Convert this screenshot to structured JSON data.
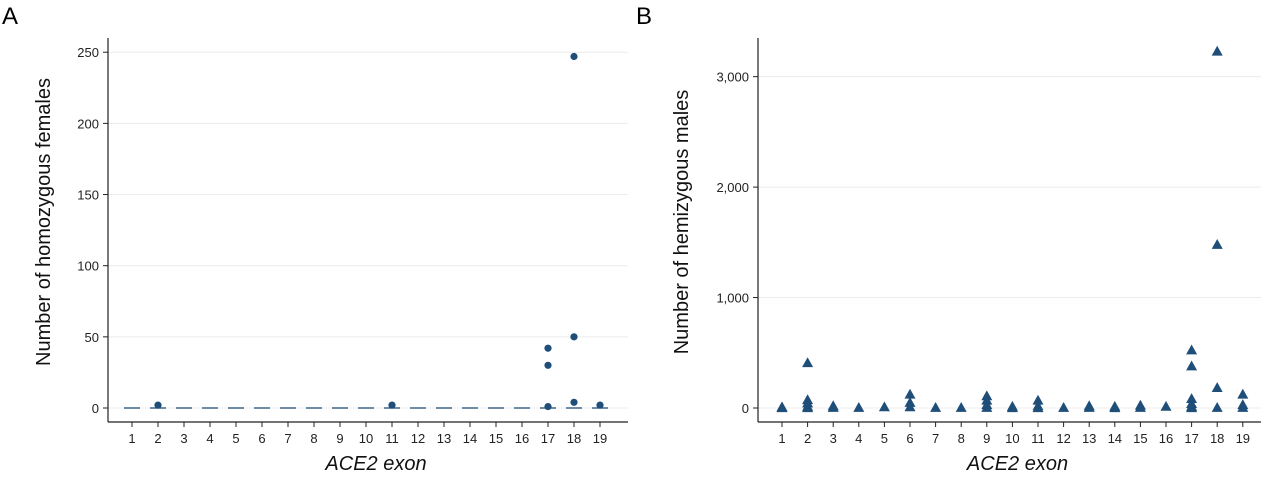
{
  "chart_data": [
    {
      "type": "scatter",
      "panel_label": "A",
      "xlabel": "ACE2 exon",
      "ylabel": "Number of homozygous females",
      "x_ticks": [
        "1",
        "2",
        "3",
        "4",
        "5",
        "6",
        "7",
        "8",
        "9",
        "10",
        "11",
        "12",
        "13",
        "14",
        "15",
        "16",
        "17",
        "18",
        "19"
      ],
      "ylim": [
        0,
        260
      ],
      "y_ticks": [
        0,
        50,
        100,
        150,
        200,
        250
      ],
      "y_tick_labels": [
        "0",
        "50",
        "100",
        "150",
        "200",
        "250"
      ],
      "grid": true,
      "marker": "circle",
      "color": "#1f4e79",
      "points": [
        {
          "x": 2,
          "y": 2
        },
        {
          "x": 11,
          "y": 2
        },
        {
          "x": 17,
          "y": 42
        },
        {
          "x": 17,
          "y": 30
        },
        {
          "x": 17,
          "y": 1
        },
        {
          "x": 18,
          "y": 247
        },
        {
          "x": 18,
          "y": 50
        },
        {
          "x": 18,
          "y": 4
        },
        {
          "x": 19,
          "y": 2
        }
      ],
      "zero_dash_exons": [
        1,
        2,
        3,
        4,
        5,
        6,
        7,
        8,
        9,
        10,
        11,
        12,
        13,
        14,
        15,
        16,
        17,
        18,
        19
      ]
    },
    {
      "type": "scatter",
      "panel_label": "B",
      "xlabel": "ACE2 exon",
      "ylabel": "Number of hemizygous males",
      "x_ticks": [
        "1",
        "2",
        "3",
        "4",
        "5",
        "6",
        "7",
        "8",
        "9",
        "10",
        "11",
        "12",
        "13",
        "14",
        "15",
        "16",
        "17",
        "18",
        "19"
      ],
      "ylim": [
        0,
        3350
      ],
      "y_ticks": [
        0,
        1000,
        2000,
        3000
      ],
      "y_tick_labels": [
        "0",
        "1,000",
        "2,000",
        "3,000"
      ],
      "grid": true,
      "marker": "triangle",
      "color": "#1f4e79",
      "points": [
        {
          "x": 1,
          "y": 10
        },
        {
          "x": 1,
          "y": 2
        },
        {
          "x": 2,
          "y": 410
        },
        {
          "x": 2,
          "y": 75
        },
        {
          "x": 2,
          "y": 45
        },
        {
          "x": 2,
          "y": 15
        },
        {
          "x": 2,
          "y": 3
        },
        {
          "x": 3,
          "y": 20
        },
        {
          "x": 3,
          "y": 5
        },
        {
          "x": 4,
          "y": 5
        },
        {
          "x": 5,
          "y": 10
        },
        {
          "x": 6,
          "y": 125
        },
        {
          "x": 6,
          "y": 50
        },
        {
          "x": 6,
          "y": 10
        },
        {
          "x": 7,
          "y": 5
        },
        {
          "x": 8,
          "y": 5
        },
        {
          "x": 9,
          "y": 110
        },
        {
          "x": 9,
          "y": 70
        },
        {
          "x": 9,
          "y": 30
        },
        {
          "x": 9,
          "y": 5
        },
        {
          "x": 10,
          "y": 15
        },
        {
          "x": 10,
          "y": 3
        },
        {
          "x": 11,
          "y": 70
        },
        {
          "x": 11,
          "y": 20
        },
        {
          "x": 11,
          "y": 3
        },
        {
          "x": 12,
          "y": 5
        },
        {
          "x": 13,
          "y": 20
        },
        {
          "x": 13,
          "y": 5
        },
        {
          "x": 14,
          "y": 15
        },
        {
          "x": 14,
          "y": 3
        },
        {
          "x": 15,
          "y": 25
        },
        {
          "x": 15,
          "y": 5
        },
        {
          "x": 16,
          "y": 15
        },
        {
          "x": 17,
          "y": 525
        },
        {
          "x": 17,
          "y": 380
        },
        {
          "x": 17,
          "y": 85
        },
        {
          "x": 17,
          "y": 40
        },
        {
          "x": 17,
          "y": 15
        },
        {
          "x": 17,
          "y": 3
        },
        {
          "x": 18,
          "y": 3230
        },
        {
          "x": 18,
          "y": 1480
        },
        {
          "x": 18,
          "y": 185
        },
        {
          "x": 18,
          "y": 5
        },
        {
          "x": 19,
          "y": 125
        },
        {
          "x": 19,
          "y": 30
        },
        {
          "x": 19,
          "y": 5
        }
      ]
    }
  ]
}
